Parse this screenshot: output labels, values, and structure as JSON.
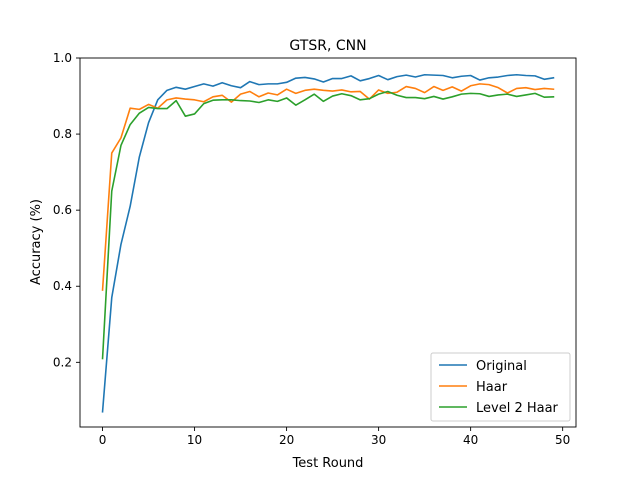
{
  "chart_data": {
    "type": "line",
    "title": "GTSR, CNN",
    "xlabel": "Test Round",
    "ylabel": "Accuracy (%)",
    "xlim": [
      -2.45,
      51.45
    ],
    "ylim": [
      0.03,
      1.0
    ],
    "xticks": [
      0,
      10,
      20,
      30,
      40,
      50
    ],
    "yticks": [
      0.2,
      0.4,
      0.6,
      0.8,
      1.0
    ],
    "xtick_labels": [
      "0",
      "10",
      "20",
      "30",
      "40",
      "50"
    ],
    "ytick_labels": [
      "0.2",
      "0.4",
      "0.6",
      "0.8",
      "1.0"
    ],
    "grid": false,
    "legend_position": "lower-right",
    "x": [
      0,
      1,
      2,
      3,
      4,
      5,
      6,
      7,
      8,
      9,
      10,
      11,
      12,
      13,
      14,
      15,
      16,
      17,
      18,
      19,
      20,
      21,
      22,
      23,
      24,
      25,
      26,
      27,
      28,
      29,
      30,
      31,
      32,
      33,
      34,
      35,
      36,
      37,
      38,
      39,
      40,
      41,
      42,
      43,
      44,
      45,
      46,
      47,
      48,
      49
    ],
    "series": [
      {
        "name": "Original",
        "color": "#1f77b4",
        "values": [
          0.07,
          0.37,
          0.51,
          0.61,
          0.74,
          0.83,
          0.89,
          0.915,
          0.923,
          0.918,
          0.925,
          0.932,
          0.926,
          0.935,
          0.927,
          0.922,
          0.938,
          0.93,
          0.932,
          0.932,
          0.936,
          0.947,
          0.949,
          0.945,
          0.937,
          0.946,
          0.946,
          0.953,
          0.94,
          0.946,
          0.954,
          0.943,
          0.951,
          0.955,
          0.95,
          0.956,
          0.955,
          0.954,
          0.948,
          0.952,
          0.954,
          0.942,
          0.948,
          0.95,
          0.954,
          0.956,
          0.954,
          0.953,
          0.944,
          0.948
        ]
      },
      {
        "name": "Haar",
        "color": "#ff7f0e",
        "values": [
          0.39,
          0.75,
          0.79,
          0.868,
          0.865,
          0.878,
          0.868,
          0.89,
          0.895,
          0.892,
          0.89,
          0.885,
          0.898,
          0.902,
          0.884,
          0.905,
          0.912,
          0.898,
          0.908,
          0.903,
          0.918,
          0.907,
          0.915,
          0.918,
          0.915,
          0.913,
          0.916,
          0.911,
          0.912,
          0.892,
          0.916,
          0.907,
          0.91,
          0.925,
          0.92,
          0.909,
          0.925,
          0.915,
          0.924,
          0.913,
          0.927,
          0.932,
          0.93,
          0.922,
          0.908,
          0.92,
          0.922,
          0.917,
          0.92,
          0.918
        ]
      },
      {
        "name": "Level 2 Haar",
        "color": "#2ca02c",
        "values": [
          0.21,
          0.65,
          0.77,
          0.825,
          0.855,
          0.87,
          0.867,
          0.867,
          0.888,
          0.847,
          0.853,
          0.88,
          0.889,
          0.89,
          0.89,
          0.888,
          0.887,
          0.883,
          0.89,
          0.886,
          0.895,
          0.876,
          0.89,
          0.905,
          0.886,
          0.9,
          0.906,
          0.901,
          0.89,
          0.893,
          0.905,
          0.912,
          0.902,
          0.896,
          0.896,
          0.893,
          0.899,
          0.892,
          0.898,
          0.905,
          0.907,
          0.906,
          0.899,
          0.903,
          0.905,
          0.899,
          0.903,
          0.907,
          0.897,
          0.898
        ]
      }
    ]
  }
}
